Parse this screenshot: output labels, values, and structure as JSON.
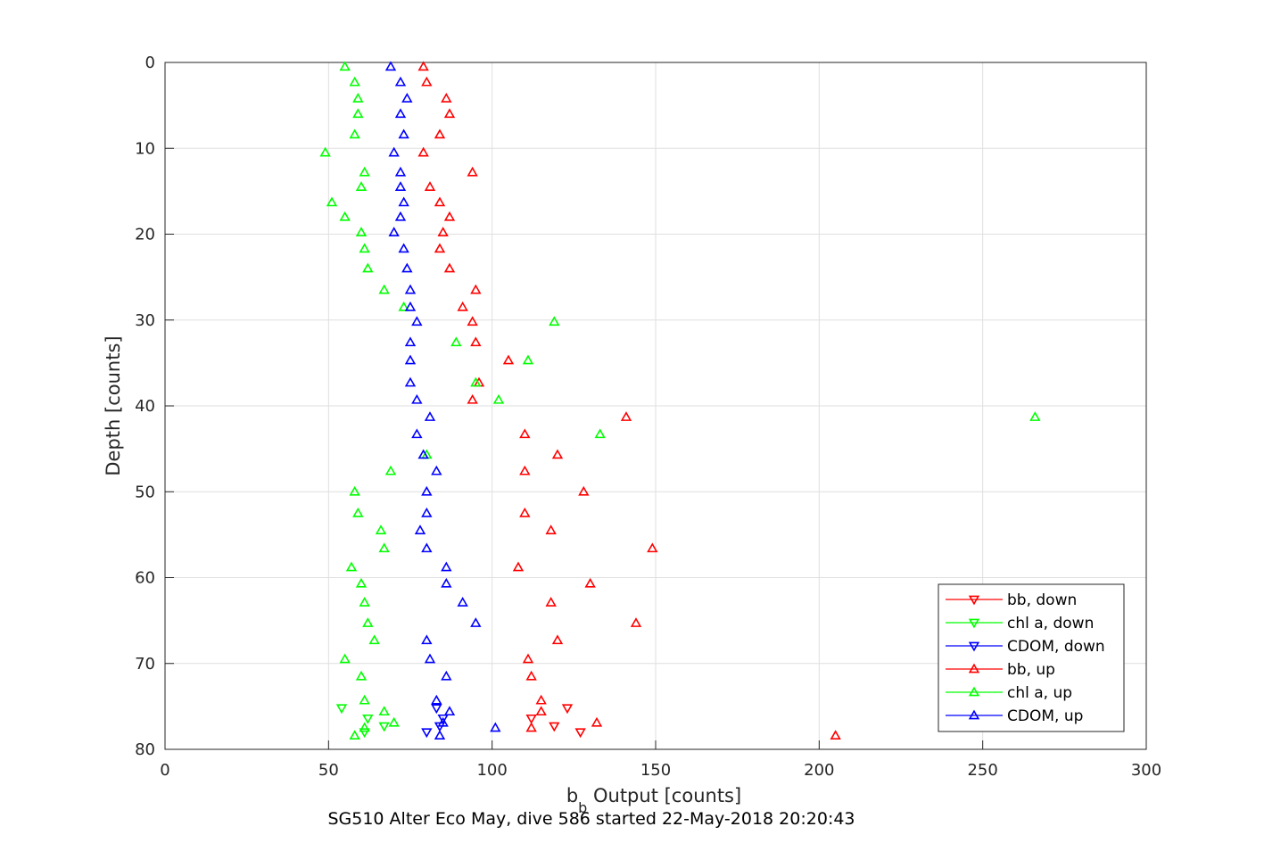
{
  "chart_data": {
    "type": "scatter",
    "caption": "SG510 Alter Eco May, dive 586 started 22-May-2018 20:20:43",
    "xlabel_main": "b",
    "xlabel_sub": "b",
    "xlabel_rest": " Output [counts]",
    "ylabel": "Depth [counts]",
    "xlim": [
      0,
      300
    ],
    "ylim": [
      0,
      80
    ],
    "y_reversed": true,
    "grid": true,
    "legend_position": "bottom-right",
    "xticks": [
      0,
      50,
      100,
      150,
      200,
      250,
      300
    ],
    "yticks": [
      0,
      10,
      20,
      30,
      40,
      50,
      60,
      70,
      80
    ],
    "series": [
      {
        "name": "bb, down",
        "color": "#ff0000",
        "marker": "triangle-down",
        "points": [
          [
            112,
            76.4
          ],
          [
            127,
            78
          ],
          [
            123,
            75.2
          ],
          [
            119,
            77.3
          ]
        ]
      },
      {
        "name": "chl a, down",
        "color": "#00ff00",
        "marker": "triangle-down",
        "points": [
          [
            54,
            75.2
          ],
          [
            62,
            76.4
          ],
          [
            61,
            78
          ],
          [
            67,
            77.3
          ]
        ]
      },
      {
        "name": "CDOM, down",
        "color": "#0000ff",
        "marker": "triangle-down",
        "points": [
          [
            83,
            75.2
          ],
          [
            85,
            76.4
          ],
          [
            80,
            78
          ],
          [
            84,
            77.3
          ]
        ]
      },
      {
        "name": "bb, up",
        "color": "#ff0000",
        "marker": "triangle-up",
        "points": [
          [
            79,
            0.5
          ],
          [
            80,
            2.3
          ],
          [
            86,
            4.2
          ],
          [
            87,
            6
          ],
          [
            84,
            8.4
          ],
          [
            79,
            10.5
          ],
          [
            94,
            12.8
          ],
          [
            81,
            14.5
          ],
          [
            84,
            16.3
          ],
          [
            87,
            18
          ],
          [
            85,
            19.8
          ],
          [
            84,
            21.7
          ],
          [
            87,
            24
          ],
          [
            95,
            26.5
          ],
          [
            91,
            28.5
          ],
          [
            94,
            30.2
          ],
          [
            95,
            32.6
          ],
          [
            105,
            34.7
          ],
          [
            96,
            37.3
          ],
          [
            94,
            39.3
          ],
          [
            141,
            41.3
          ],
          [
            110,
            43.3
          ],
          [
            120,
            45.7
          ],
          [
            110,
            47.6
          ],
          [
            128,
            50
          ],
          [
            110,
            52.5
          ],
          [
            118,
            54.5
          ],
          [
            149,
            56.6
          ],
          [
            108,
            58.8
          ],
          [
            130,
            60.7
          ],
          [
            118,
            62.9
          ],
          [
            144,
            65.3
          ],
          [
            120,
            67.3
          ],
          [
            111,
            69.5
          ],
          [
            112,
            71.5
          ],
          [
            115,
            74.3
          ],
          [
            115,
            75.6
          ],
          [
            132,
            76.9
          ],
          [
            112,
            77.5
          ],
          [
            205,
            78.4
          ]
        ]
      },
      {
        "name": "chl a, up",
        "color": "#00ff00",
        "marker": "triangle-up",
        "points": [
          [
            55,
            0.5
          ],
          [
            58,
            2.3
          ],
          [
            59,
            4.2
          ],
          [
            59,
            6
          ],
          [
            58,
            8.4
          ],
          [
            49,
            10.5
          ],
          [
            61,
            12.8
          ],
          [
            60,
            14.5
          ],
          [
            51,
            16.3
          ],
          [
            55,
            18
          ],
          [
            60,
            19.8
          ],
          [
            61,
            21.7
          ],
          [
            62,
            24
          ],
          [
            67,
            26.5
          ],
          [
            73,
            28.5
          ],
          [
            119,
            30.2
          ],
          [
            89,
            32.6
          ],
          [
            111,
            34.7
          ],
          [
            95,
            37.3
          ],
          [
            102,
            39.3
          ],
          [
            266,
            41.3
          ],
          [
            133,
            43.3
          ],
          [
            80,
            45.7
          ],
          [
            69,
            47.6
          ],
          [
            58,
            50
          ],
          [
            59,
            52.5
          ],
          [
            66,
            54.5
          ],
          [
            67,
            56.6
          ],
          [
            57,
            58.8
          ],
          [
            60,
            60.7
          ],
          [
            61,
            62.9
          ],
          [
            62,
            65.3
          ],
          [
            64,
            67.3
          ],
          [
            55,
            69.5
          ],
          [
            60,
            71.5
          ],
          [
            61,
            74.3
          ],
          [
            67,
            75.6
          ],
          [
            70,
            76.9
          ],
          [
            61,
            77.5
          ],
          [
            58,
            78.4
          ]
        ]
      },
      {
        "name": "CDOM, up",
        "color": "#0000ff",
        "marker": "triangle-up",
        "points": [
          [
            69,
            0.5
          ],
          [
            72,
            2.3
          ],
          [
            74,
            4.2
          ],
          [
            72,
            6
          ],
          [
            73,
            8.4
          ],
          [
            70,
            10.5
          ],
          [
            72,
            12.8
          ],
          [
            72,
            14.5
          ],
          [
            73,
            16.3
          ],
          [
            72,
            18
          ],
          [
            70,
            19.8
          ],
          [
            73,
            21.7
          ],
          [
            74,
            24
          ],
          [
            75,
            26.5
          ],
          [
            75,
            28.5
          ],
          [
            77,
            30.2
          ],
          [
            75,
            32.6
          ],
          [
            75,
            34.7
          ],
          [
            75,
            37.3
          ],
          [
            77,
            39.3
          ],
          [
            81,
            41.3
          ],
          [
            77,
            43.3
          ],
          [
            79,
            45.7
          ],
          [
            83,
            47.6
          ],
          [
            80,
            50
          ],
          [
            80,
            52.5
          ],
          [
            78,
            54.5
          ],
          [
            80,
            56.6
          ],
          [
            86,
            58.8
          ],
          [
            86,
            60.7
          ],
          [
            91,
            62.9
          ],
          [
            95,
            65.3
          ],
          [
            80,
            67.3
          ],
          [
            81,
            69.5
          ],
          [
            86,
            71.5
          ],
          [
            83,
            74.3
          ],
          [
            87,
            75.6
          ],
          [
            85,
            76.9
          ],
          [
            101,
            77.5
          ],
          [
            84,
            78.4
          ]
        ]
      }
    ]
  }
}
